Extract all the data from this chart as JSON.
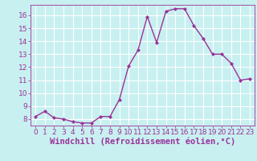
{
  "x": [
    0,
    1,
    2,
    3,
    4,
    5,
    6,
    7,
    8,
    9,
    10,
    11,
    12,
    13,
    14,
    15,
    16,
    17,
    18,
    19,
    20,
    21,
    22,
    23
  ],
  "y": [
    8.2,
    8.6,
    8.1,
    8.0,
    7.8,
    7.7,
    7.7,
    8.2,
    8.2,
    9.5,
    12.1,
    13.3,
    15.9,
    13.9,
    16.3,
    16.5,
    16.5,
    15.2,
    14.2,
    13.0,
    13.0,
    12.3,
    11.0,
    11.1
  ],
  "ylim": [
    7.5,
    16.8
  ],
  "xlim": [
    -0.5,
    23.5
  ],
  "yticks": [
    8,
    9,
    10,
    11,
    12,
    13,
    14,
    15,
    16
  ],
  "xticks": [
    0,
    1,
    2,
    3,
    4,
    5,
    6,
    7,
    8,
    9,
    10,
    11,
    12,
    13,
    14,
    15,
    16,
    17,
    18,
    19,
    20,
    21,
    22,
    23
  ],
  "line_color": "#993399",
  "marker": "D",
  "marker_size": 2,
  "linewidth": 1.0,
  "xlabel": "Windchill (Refroidissement éolien,°C)",
  "background_color": "#c8f0f0",
  "grid_color": "#ffffff",
  "tick_label_fontsize": 6.5,
  "xlabel_fontsize": 7.5
}
